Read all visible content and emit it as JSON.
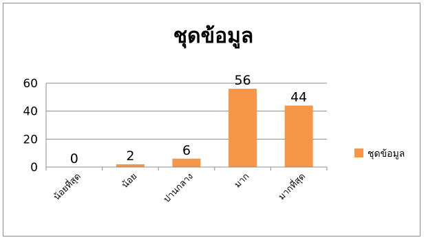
{
  "chart_data": {
    "type": "bar",
    "title": "ชุดข้อมูล",
    "categories": [
      "น้อยที่สุด",
      "น้อย",
      "ปานกลาง",
      "มาก",
      "มากที่สุด"
    ],
    "series": [
      {
        "name": "ชุดข้อมูล",
        "values": [
          0,
          2,
          6,
          56,
          44
        ],
        "color": "#f79646"
      }
    ],
    "data_labels": [
      "0",
      "2",
      "6",
      "56",
      "44"
    ],
    "y_ticks": [
      0,
      20,
      40,
      60
    ],
    "ylim": [
      0,
      60
    ],
    "grid": true,
    "legend_position": "right"
  }
}
